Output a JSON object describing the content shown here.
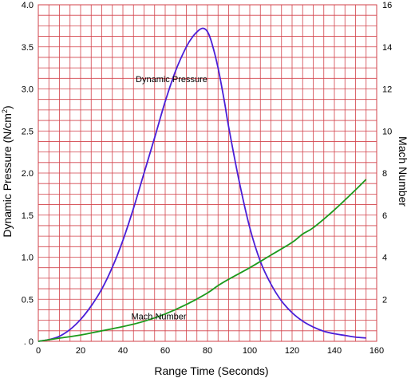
{
  "chart_data": {
    "type": "line",
    "title": "",
    "xlabel": "Range Time (Seconds)",
    "ylabel": "Dynamic Pressure (N/cm²)",
    "y2label": "Mach Number",
    "xlim": [
      0,
      160
    ],
    "ylim": [
      0,
      4.0
    ],
    "y2lim": [
      0,
      16
    ],
    "grid": true,
    "grid_color": "#d2424a",
    "x_ticks": [
      "0",
      "20",
      "40",
      "60",
      "80",
      "100",
      "120",
      "140",
      "160"
    ],
    "y_ticks": [
      ". 0",
      "0.5",
      "1.0",
      "1.5",
      "2.0",
      "2.5",
      "3.0",
      "3.5",
      "4.0"
    ],
    "y2_ticks": [
      "2",
      "4",
      "6",
      "8",
      "10",
      "12",
      "14",
      "16"
    ],
    "series": [
      {
        "name": "Dynamic Pressure",
        "axis": "left",
        "color": "#4a1fd8",
        "x": [
          0,
          5,
          10,
          15,
          20,
          25,
          30,
          35,
          40,
          45,
          50,
          55,
          60,
          65,
          70,
          73,
          76,
          78,
          80,
          82,
          85,
          88,
          90,
          95,
          100,
          105,
          110,
          115,
          120,
          125,
          130,
          135,
          140,
          145,
          150,
          155
        ],
        "y": [
          0.0,
          0.02,
          0.06,
          0.14,
          0.26,
          0.42,
          0.62,
          0.88,
          1.2,
          1.58,
          2.0,
          2.42,
          2.85,
          3.22,
          3.5,
          3.62,
          3.7,
          3.72,
          3.68,
          3.55,
          3.25,
          2.85,
          2.55,
          1.9,
          1.35,
          0.95,
          0.68,
          0.48,
          0.34,
          0.24,
          0.17,
          0.12,
          0.09,
          0.07,
          0.05,
          0.04
        ]
      },
      {
        "name": "Mach Number",
        "axis": "right",
        "color": "#1c9a1c",
        "x": [
          0,
          10,
          20,
          30,
          40,
          50,
          60,
          70,
          80,
          85,
          90,
          100,
          110,
          120,
          125,
          130,
          140,
          150,
          155
        ],
        "y": [
          0.0,
          0.15,
          0.3,
          0.5,
          0.7,
          0.95,
          1.3,
          1.75,
          2.3,
          2.65,
          2.95,
          3.5,
          4.1,
          4.7,
          5.1,
          5.4,
          6.25,
          7.2,
          7.7
        ]
      }
    ],
    "annotations": [
      {
        "text": "Dynamic Pressure",
        "x": 63,
        "y": 3.12,
        "axis": "left"
      },
      {
        "text": "Mach Number",
        "x": 57,
        "y": 1.2,
        "axis": "right"
      }
    ]
  }
}
